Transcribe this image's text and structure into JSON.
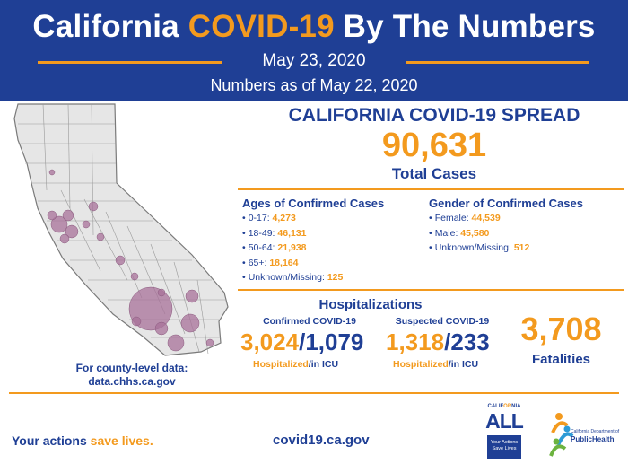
{
  "header": {
    "title_part1": "California ",
    "title_accent": "COVID-19",
    "title_part2": " By The Numbers",
    "date": "May 23, 2020",
    "numbers_as_of": "Numbers as of May 22, 2020"
  },
  "map": {
    "county_note_line1": "For county-level data:",
    "county_note_line2": "data.chhs.ca.gov"
  },
  "spread": {
    "title": "CALIFORNIA COVID-19 SPREAD",
    "total_cases": "90,631",
    "total_label": "Total Cases"
  },
  "ages": {
    "title": "Ages of Confirmed Cases",
    "items": [
      {
        "label": "0-17: ",
        "value": "4,273"
      },
      {
        "label": "18-49: ",
        "value": "46,131"
      },
      {
        "label": "50-64: ",
        "value": "21,938"
      },
      {
        "label": "65+: ",
        "value": "18,164"
      },
      {
        "label": "Unknown/Missing: ",
        "value": "125"
      }
    ]
  },
  "gender": {
    "title": "Gender of Confirmed Cases",
    "items": [
      {
        "label": "Female: ",
        "value": "44,539"
      },
      {
        "label": "Male: ",
        "value": "45,580"
      },
      {
        "label": "Unknown/Missing: ",
        "value": "512"
      }
    ]
  },
  "hospitalizations": {
    "title": "Hospitalizations",
    "confirmed": {
      "title": "Confirmed COVID-19",
      "hospitalized": "3,024",
      "separator": "/",
      "icu": "1,079",
      "cap_hosp": "Hospitalized",
      "cap_icu": "/in ICU"
    },
    "suspected": {
      "title": "Suspected COVID-19",
      "hospitalized": "1,318",
      "separator": "/",
      "icu": "233",
      "cap_hosp": "Hospitalized",
      "cap_icu": "/in ICU"
    }
  },
  "fatalities": {
    "value": "3,708",
    "label": "Fatalities"
  },
  "footer": {
    "tagline_part1": "Your actions ",
    "tagline_accent": "save lives.",
    "website": "covid19.ca.gov",
    "ca_all_top1": "CALIF",
    "ca_all_top_accent": "OR",
    "ca_all_top2": "NIA",
    "ca_all_big": "ALL",
    "ca_all_box": "Your Actions Save Lives",
    "cdph_small": "California Department of",
    "cdph_name": "PublicHealth"
  },
  "colors": {
    "brand_blue": "#1f3f95",
    "accent_orange": "#f39a1e",
    "bubble_purple": "#a8729a",
    "map_gray": "#e6e6e6"
  }
}
